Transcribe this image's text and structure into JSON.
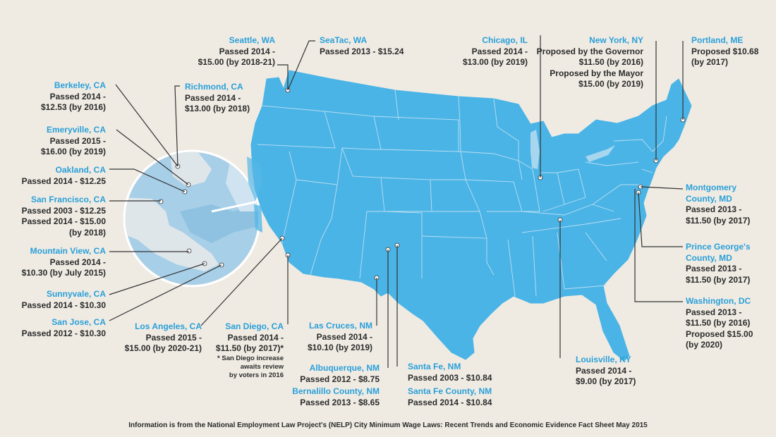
{
  "colors": {
    "background": "#efebe3",
    "map_fill": "#4bb4e6",
    "state_border": "#b9def2",
    "inset_fill": "#a8cfe8",
    "inset_land": "#dfe6ea",
    "inset_water": "#a8cfe8",
    "city_text": "#2a9fd8",
    "body_text": "#2b2b2b",
    "leader_line": "#333333"
  },
  "labels": {
    "seattle": {
      "city": "Seattle, WA",
      "lines": [
        "Passed 2014 -",
        "$15.00 (by 2018-21)"
      ]
    },
    "seatac": {
      "city": "SeaTac, WA",
      "lines": [
        "Passed 2013 - $15.24"
      ]
    },
    "berkeley": {
      "city": "Berkeley, CA",
      "lines": [
        "Passed 2014 -",
        "$12.53 (by 2016)"
      ]
    },
    "richmond": {
      "city": "Richmond, CA",
      "lines": [
        "Passed 2014 -",
        "$13.00 (by 2018)"
      ]
    },
    "emeryville": {
      "city": "Emeryville, CA",
      "lines": [
        "Passed 2015 -",
        "$16.00 (by 2019)"
      ]
    },
    "oakland": {
      "city": "Oakland, CA",
      "lines": [
        "Passed 2014 - $12.25"
      ]
    },
    "sanfrancisco": {
      "city": "San Francisco, CA",
      "lines": [
        "Passed 2003 - $12.25",
        "Passed 2014 - $15.00",
        "(by 2018)"
      ]
    },
    "mountainview": {
      "city": "Mountain View, CA",
      "lines": [
        "Passed 2014 -",
        "$10.30 (by July 2015)"
      ]
    },
    "sunnyvale": {
      "city": "Sunnyvale, CA",
      "lines": [
        "Passed 2014 - $10.30"
      ]
    },
    "sanjose": {
      "city": "San Jose, CA",
      "lines": [
        "Passed 2012 - $10.30"
      ]
    },
    "losangeles": {
      "city": "Los Angeles, CA",
      "lines": [
        "Passed 2015 -",
        "$15.00 (by 2020-21)"
      ]
    },
    "sandiego": {
      "city": "San Diego, CA",
      "lines": [
        "Passed 2014 -",
        "$11.50 (by 2017)*"
      ],
      "note": [
        "* San Diego increase",
        "awaits review",
        "by voters in 2016"
      ]
    },
    "lascruces": {
      "city": "Las Cruces, NM",
      "lines": [
        "Passed 2014 -",
        "$10.10 (by 2019)"
      ]
    },
    "albuquerque": {
      "city": "Albuquerque, NM",
      "lines": [
        "Passed 2012 - $8.75"
      ]
    },
    "bernalillo": {
      "city": "Bernalillo County, NM",
      "lines": [
        "Passed 2013 - $8.65"
      ]
    },
    "santafe": {
      "city": "Santa Fe, NM",
      "lines": [
        "Passed 2003 - $10.84"
      ]
    },
    "santafecounty": {
      "city": "Santa Fe County, NM",
      "lines": [
        "Passed 2014 - $10.84"
      ]
    },
    "chicago": {
      "city": "Chicago, IL",
      "lines": [
        "Passed 2014 -",
        "$13.00 (by 2019)"
      ]
    },
    "newyork": {
      "city": "New York, NY",
      "lines": [
        "Proposed by the Governor",
        "$11.50 (by 2016)",
        "Proposed by the Mayor",
        "$15.00 (by 2019)"
      ]
    },
    "portland": {
      "city": "Portland, ME",
      "lines": [
        "Proposed $10.68",
        "(by 2017)"
      ]
    },
    "montgomery": {
      "city": "Montgomery",
      "lines_city2": "County, MD",
      "lines": [
        "Passed 2013 -",
        "$11.50 (by 2017)"
      ]
    },
    "princegeorges": {
      "city": "Prince George's",
      "lines_city2": "County, MD",
      "lines": [
        "Passed 2013 -",
        "$11.50 (by 2017)"
      ]
    },
    "washington": {
      "city": "Washington, DC",
      "lines": [
        "Passed 2013 -",
        "$11.50 (by 2016)",
        "Proposed $15.00",
        "(by 2020)"
      ]
    },
    "louisville": {
      "city": "Louisville, KY",
      "lines": [
        "Passed 2014 -",
        "$9.00 (by 2017)"
      ]
    }
  },
  "footer": "Information is from the National Employment Law Project's (NELP) City Minimum Wage Laws: Recent Trends and Economic Evidence Fact Sheet May 2015"
}
